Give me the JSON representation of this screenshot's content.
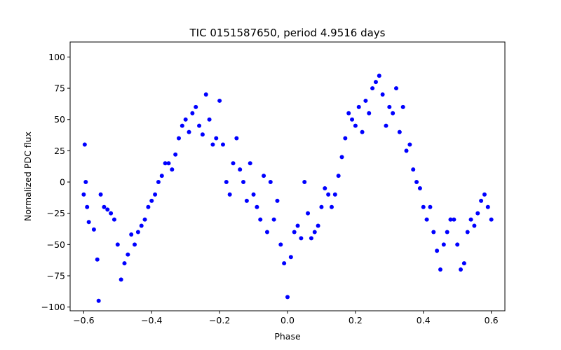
{
  "chart_data": {
    "type": "scatter",
    "title": "TIC 0151587650, period 4.9516 days",
    "xlabel": "Phase",
    "ylabel": "Normalized PDC flux",
    "xlim": [
      -0.64,
      0.64
    ],
    "ylim": [
      -103,
      112
    ],
    "x_ticks": [
      -0.6,
      -0.4,
      -0.2,
      0.0,
      0.2,
      0.4,
      0.6
    ],
    "x_tick_labels": [
      "−0.6",
      "−0.4",
      "−0.2",
      "0.0",
      "0.2",
      "0.4",
      "0.6"
    ],
    "y_ticks": [
      -100,
      -75,
      -50,
      -25,
      0,
      25,
      50,
      75,
      100
    ],
    "y_tick_labels": [
      "−100",
      "−75",
      "−50",
      "−25",
      "0",
      "25",
      "50",
      "75",
      "100"
    ],
    "grid": false,
    "marker_color": "#0000ff",
    "series": [
      {
        "points": [
          [
            -0.6,
            -10
          ],
          [
            -0.597,
            30
          ],
          [
            -0.594,
            0
          ],
          [
            -0.59,
            -20
          ],
          [
            -0.585,
            -32
          ],
          [
            -0.57,
            -38
          ],
          [
            -0.56,
            -62
          ],
          [
            -0.556,
            -95
          ],
          [
            -0.55,
            -10
          ],
          [
            -0.54,
            -20
          ],
          [
            -0.53,
            -22
          ],
          [
            -0.52,
            -25
          ],
          [
            -0.51,
            -30
          ],
          [
            -0.5,
            -50
          ],
          [
            -0.49,
            -78
          ],
          [
            -0.48,
            -65
          ],
          [
            -0.47,
            -58
          ],
          [
            -0.46,
            -42
          ],
          [
            -0.45,
            -50
          ],
          [
            -0.44,
            -40
          ],
          [
            -0.43,
            -35
          ],
          [
            -0.42,
            -30
          ],
          [
            -0.41,
            -20
          ],
          [
            -0.4,
            -15
          ],
          [
            -0.39,
            -10
          ],
          [
            -0.38,
            0
          ],
          [
            -0.37,
            5
          ],
          [
            -0.36,
            15
          ],
          [
            -0.35,
            15
          ],
          [
            -0.34,
            10
          ],
          [
            -0.33,
            22
          ],
          [
            -0.32,
            35
          ],
          [
            -0.31,
            45
          ],
          [
            -0.3,
            50
          ],
          [
            -0.29,
            40
          ],
          [
            -0.28,
            55
          ],
          [
            -0.27,
            60
          ],
          [
            -0.26,
            45
          ],
          [
            -0.25,
            38
          ],
          [
            -0.24,
            70
          ],
          [
            -0.23,
            50
          ],
          [
            -0.22,
            30
          ],
          [
            -0.21,
            35
          ],
          [
            -0.2,
            65
          ],
          [
            -0.19,
            30
          ],
          [
            -0.18,
            0
          ],
          [
            -0.17,
            -10
          ],
          [
            -0.16,
            15
          ],
          [
            -0.15,
            35
          ],
          [
            -0.14,
            10
          ],
          [
            -0.13,
            0
          ],
          [
            -0.12,
            -15
          ],
          [
            -0.11,
            15
          ],
          [
            -0.1,
            -10
          ],
          [
            -0.09,
            -20
          ],
          [
            -0.08,
            -30
          ],
          [
            -0.07,
            5
          ],
          [
            -0.06,
            -40
          ],
          [
            -0.05,
            0
          ],
          [
            -0.04,
            -30
          ],
          [
            -0.03,
            -15
          ],
          [
            -0.02,
            -50
          ],
          [
            -0.01,
            -65
          ],
          [
            0.0,
            -92
          ],
          [
            0.01,
            -60
          ],
          [
            0.02,
            -40
          ],
          [
            0.03,
            -35
          ],
          [
            0.04,
            -45
          ],
          [
            0.05,
            0
          ],
          [
            0.06,
            -25
          ],
          [
            0.07,
            -45
          ],
          [
            0.08,
            -40
          ],
          [
            0.09,
            -35
          ],
          [
            0.1,
            -20
          ],
          [
            0.11,
            -5
          ],
          [
            0.12,
            -10
          ],
          [
            0.13,
            -20
          ],
          [
            0.14,
            -10
          ],
          [
            0.15,
            5
          ],
          [
            0.16,
            20
          ],
          [
            0.17,
            35
          ],
          [
            0.18,
            55
          ],
          [
            0.19,
            50
          ],
          [
            0.2,
            45
          ],
          [
            0.21,
            60
          ],
          [
            0.22,
            40
          ],
          [
            0.23,
            65
          ],
          [
            0.24,
            55
          ],
          [
            0.25,
            75
          ],
          [
            0.26,
            80
          ],
          [
            0.27,
            85
          ],
          [
            0.28,
            70
          ],
          [
            0.29,
            45
          ],
          [
            0.3,
            60
          ],
          [
            0.31,
            55
          ],
          [
            0.32,
            75
          ],
          [
            0.33,
            40
          ],
          [
            0.34,
            60
          ],
          [
            0.35,
            25
          ],
          [
            0.36,
            30
          ],
          [
            0.37,
            10
          ],
          [
            0.38,
            0
          ],
          [
            0.39,
            -5
          ],
          [
            0.4,
            -20
          ],
          [
            0.41,
            -30
          ],
          [
            0.42,
            -20
          ],
          [
            0.43,
            -40
          ],
          [
            0.44,
            -55
          ],
          [
            0.45,
            -70
          ],
          [
            0.46,
            -50
          ],
          [
            0.47,
            -40
          ],
          [
            0.48,
            -30
          ],
          [
            0.49,
            -30
          ],
          [
            0.5,
            -50
          ],
          [
            0.51,
            -70
          ],
          [
            0.52,
            -65
          ],
          [
            0.53,
            -40
          ],
          [
            0.54,
            -30
          ],
          [
            0.55,
            -35
          ],
          [
            0.56,
            -25
          ],
          [
            0.57,
            -15
          ],
          [
            0.58,
            -10
          ],
          [
            0.59,
            -20
          ],
          [
            0.6,
            -30
          ]
        ]
      }
    ]
  }
}
